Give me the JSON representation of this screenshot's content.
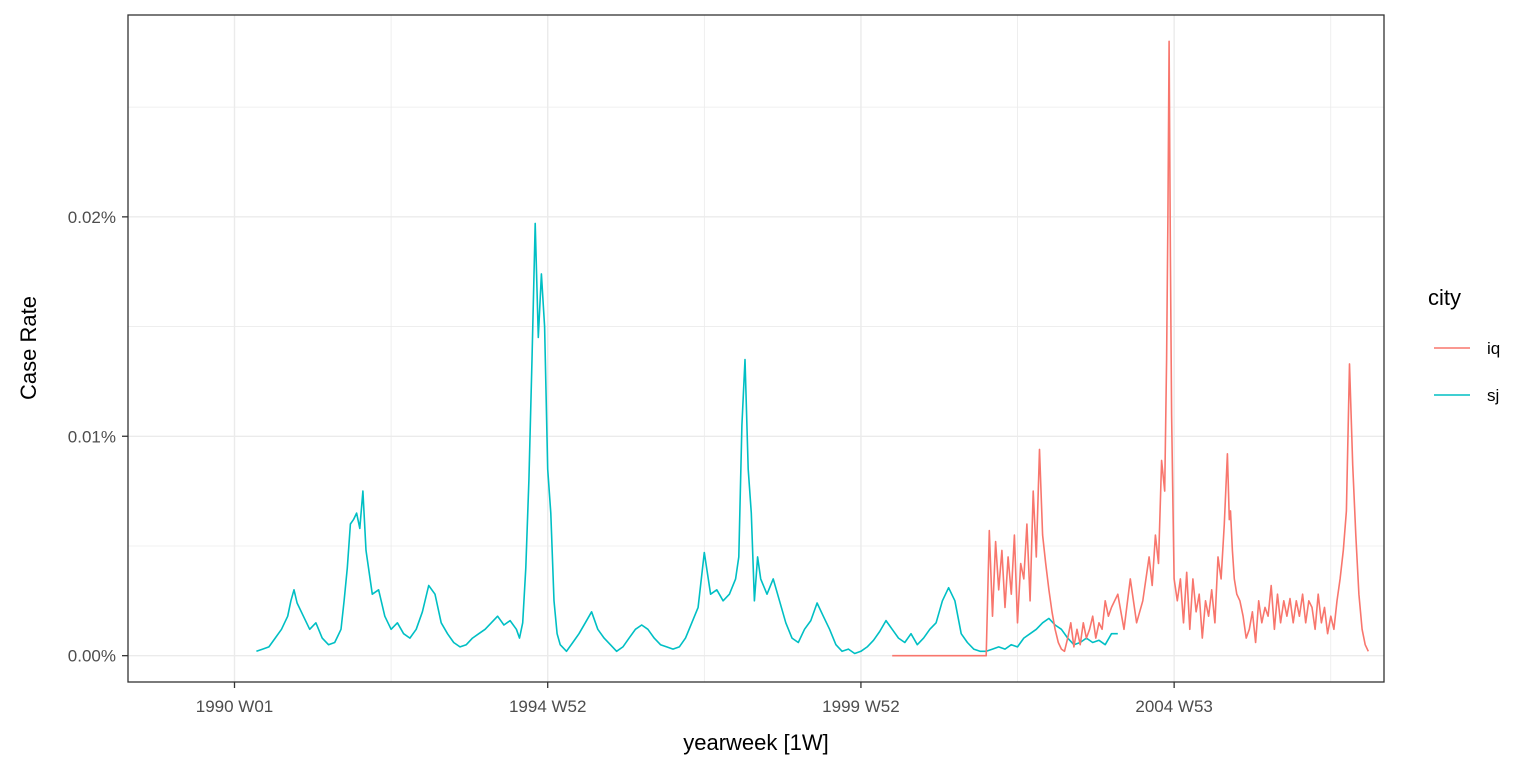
{
  "chart_data": {
    "type": "line",
    "title": "",
    "xlabel": "yearweek [1W]",
    "ylabel": "Case Rate",
    "x_unit": "year (decimal)",
    "y_unit": "percent",
    "xlim": [
      1988.3,
      2008.35
    ],
    "ylim": [
      -0.0012,
      0.0292
    ],
    "x_ticks": [
      {
        "value": 1990.0,
        "label": "1990 W01"
      },
      {
        "value": 1995.0,
        "label": "1994 W52"
      },
      {
        "value": 2000.0,
        "label": "1999 W52"
      },
      {
        "value": 2005.0,
        "label": "2004 W53"
      }
    ],
    "y_ticks": [
      {
        "value": 0.0,
        "label": "0.00%"
      },
      {
        "value": 0.01,
        "label": "0.01%"
      },
      {
        "value": 0.02,
        "label": "0.02%"
      }
    ],
    "grid": true,
    "legend_position": "right",
    "legend_title": "city",
    "series": [
      {
        "name": "iq",
        "color": "#F8766D",
        "x": [
          2000.5,
          2001.0,
          2001.5,
          2001.8,
          2002.0,
          2002.05,
          2002.1,
          2002.15,
          2002.2,
          2002.25,
          2002.3,
          2002.35,
          2002.4,
          2002.45,
          2002.5,
          2002.55,
          2002.6,
          2002.65,
          2002.7,
          2002.75,
          2002.8,
          2002.85,
          2002.9,
          2002.95,
          2003.0,
          2003.05,
          2003.1,
          2003.15,
          2003.2,
          2003.25,
          2003.3,
          2003.35,
          2003.4,
          2003.45,
          2003.5,
          2003.55,
          2003.6,
          2003.65,
          2003.7,
          2003.75,
          2003.8,
          2003.85,
          2003.9,
          2003.95,
          2004.0,
          2004.1,
          2004.2,
          2004.3,
          2004.4,
          2004.5,
          2004.6,
          2004.65,
          2004.7,
          2004.75,
          2004.8,
          2004.85,
          2004.88,
          2004.9,
          2004.92,
          2004.94,
          2004.96,
          2004.98,
          2005.0,
          2005.05,
          2005.1,
          2005.15,
          2005.2,
          2005.25,
          2005.3,
          2005.35,
          2005.4,
          2005.45,
          2005.5,
          2005.55,
          2005.6,
          2005.65,
          2005.7,
          2005.75,
          2005.8,
          2005.85,
          2005.88,
          2005.9,
          2005.93,
          2005.96,
          2006.0,
          2006.05,
          2006.1,
          2006.15,
          2006.2,
          2006.25,
          2006.3,
          2006.35,
          2006.4,
          2006.45,
          2006.5,
          2006.55,
          2006.6,
          2006.65,
          2006.7,
          2006.75,
          2006.8,
          2006.85,
          2006.9,
          2006.95,
          2007.0,
          2007.05,
          2007.1,
          2007.15,
          2007.2,
          2007.25,
          2007.3,
          2007.35,
          2007.4,
          2007.45,
          2007.5,
          2007.55,
          2007.6,
          2007.65,
          2007.7,
          2007.75,
          2007.8,
          2007.85,
          2007.9,
          2007.95,
          2008.0,
          2008.05,
          2008.1
        ],
        "y": [
          0.0,
          0.0,
          0.0,
          0.0,
          0.0,
          0.0057,
          0.0018,
          0.0052,
          0.003,
          0.0048,
          0.0022,
          0.0045,
          0.0028,
          0.0055,
          0.0015,
          0.0042,
          0.0035,
          0.006,
          0.0025,
          0.0075,
          0.0045,
          0.0094,
          0.0055,
          0.0042,
          0.003,
          0.002,
          0.0012,
          0.0006,
          0.0003,
          0.0002,
          0.0008,
          0.0015,
          0.0004,
          0.0012,
          0.0005,
          0.0015,
          0.0008,
          0.0012,
          0.0018,
          0.0008,
          0.0015,
          0.0012,
          0.0025,
          0.0018,
          0.0022,
          0.0028,
          0.0012,
          0.0035,
          0.0015,
          0.0025,
          0.0045,
          0.0032,
          0.0055,
          0.0042,
          0.0089,
          0.0075,
          0.0135,
          0.0199,
          0.028,
          0.0182,
          0.011,
          0.007,
          0.0035,
          0.0025,
          0.0035,
          0.0015,
          0.0038,
          0.0012,
          0.0035,
          0.002,
          0.0028,
          0.0008,
          0.0025,
          0.0018,
          0.003,
          0.0015,
          0.0045,
          0.0035,
          0.006,
          0.0092,
          0.0062,
          0.0066,
          0.0048,
          0.0035,
          0.0028,
          0.0025,
          0.0018,
          0.0008,
          0.0012,
          0.002,
          0.0006,
          0.0025,
          0.0015,
          0.0022,
          0.0018,
          0.0032,
          0.0012,
          0.0028,
          0.0015,
          0.0025,
          0.0018,
          0.0026,
          0.0015,
          0.0025,
          0.0018,
          0.0028,
          0.0015,
          0.0025,
          0.0022,
          0.0012,
          0.0028,
          0.0015,
          0.0022,
          0.001,
          0.0018,
          0.0012,
          0.0025,
          0.0035,
          0.0048,
          0.0066,
          0.0133,
          0.0087,
          0.0055,
          0.0028,
          0.0012,
          0.0005,
          0.0002
        ]
      },
      {
        "name": "sj",
        "color": "#00BFC4",
        "x": [
          1990.35,
          1990.45,
          1990.55,
          1990.65,
          1990.75,
          1990.85,
          1990.9,
          1990.95,
          1991.0,
          1991.1,
          1991.2,
          1991.3,
          1991.4,
          1991.5,
          1991.6,
          1991.65,
          1991.7,
          1991.75,
          1991.8,
          1991.85,
          1991.9,
          1991.95,
          1992.0,
          1992.05,
          1992.1,
          1992.2,
          1992.3,
          1992.4,
          1992.5,
          1992.6,
          1992.7,
          1992.8,
          1992.9,
          1993.0,
          1993.1,
          1993.2,
          1993.3,
          1993.4,
          1993.5,
          1993.6,
          1993.7,
          1993.8,
          1993.9,
          1994.0,
          1994.1,
          1994.2,
          1994.3,
          1994.4,
          1994.5,
          1994.55,
          1994.6,
          1994.65,
          1994.7,
          1994.75,
          1994.8,
          1994.85,
          1994.9,
          1994.95,
          1995.0,
          1995.05,
          1995.1,
          1995.15,
          1995.2,
          1995.3,
          1995.4,
          1995.5,
          1995.6,
          1995.7,
          1995.8,
          1995.9,
          1996.0,
          1996.1,
          1996.2,
          1996.3,
          1996.4,
          1996.5,
          1996.6,
          1996.7,
          1996.8,
          1996.9,
          1997.0,
          1997.1,
          1997.2,
          1997.3,
          1997.4,
          1997.5,
          1997.6,
          1997.7,
          1997.8,
          1997.9,
          1998.0,
          1998.05,
          1998.1,
          1998.15,
          1998.2,
          1998.25,
          1998.3,
          1998.35,
          1998.4,
          1998.5,
          1998.6,
          1998.7,
          1998.8,
          1998.9,
          1999.0,
          1999.1,
          1999.2,
          1999.3,
          1999.4,
          1999.5,
          1999.6,
          1999.7,
          1999.8,
          1999.9,
          2000.0,
          2000.1,
          2000.2,
          2000.3,
          2000.4,
          2000.5,
          2000.6,
          2000.7,
          2000.8,
          2000.9,
          2001.0,
          2001.1,
          2001.2,
          2001.3,
          2001.4,
          2001.5,
          2001.6,
          2001.7,
          2001.8,
          2001.9,
          2002.0,
          2002.1,
          2002.2,
          2002.3,
          2002.4,
          2002.5,
          2002.6,
          2002.7,
          2002.8,
          2002.9,
          2003.0,
          2003.1,
          2003.2,
          2003.3,
          2003.4,
          2003.5,
          2003.6,
          2003.7,
          2003.8,
          2003.9,
          2004.0,
          2004.1
        ],
        "y": [
          0.0002,
          0.0003,
          0.0004,
          0.0008,
          0.0012,
          0.0018,
          0.0025,
          0.003,
          0.0024,
          0.0018,
          0.0012,
          0.0015,
          0.0008,
          0.0005,
          0.0006,
          0.0009,
          0.0012,
          0.0025,
          0.004,
          0.006,
          0.0062,
          0.0065,
          0.0058,
          0.0075,
          0.0048,
          0.0028,
          0.003,
          0.0018,
          0.0012,
          0.0015,
          0.001,
          0.0008,
          0.0012,
          0.002,
          0.0032,
          0.0028,
          0.0015,
          0.001,
          0.0006,
          0.0004,
          0.0005,
          0.0008,
          0.001,
          0.0012,
          0.0015,
          0.0018,
          0.0014,
          0.0016,
          0.0012,
          0.0008,
          0.0015,
          0.004,
          0.008,
          0.0135,
          0.0197,
          0.0145,
          0.0174,
          0.015,
          0.0085,
          0.0065,
          0.0025,
          0.001,
          0.0005,
          0.0002,
          0.0006,
          0.001,
          0.0015,
          0.002,
          0.0012,
          0.0008,
          0.0005,
          0.0002,
          0.0004,
          0.0008,
          0.0012,
          0.0014,
          0.0012,
          0.0008,
          0.0005,
          0.0004,
          0.0003,
          0.0004,
          0.0008,
          0.0015,
          0.0022,
          0.0047,
          0.0028,
          0.003,
          0.0025,
          0.0028,
          0.0035,
          0.0045,
          0.0105,
          0.0135,
          0.0085,
          0.0065,
          0.0025,
          0.0045,
          0.0035,
          0.0028,
          0.0035,
          0.0025,
          0.0015,
          0.0008,
          0.0006,
          0.0012,
          0.0016,
          0.0024,
          0.0018,
          0.0012,
          0.0005,
          0.0002,
          0.0003,
          0.0001,
          0.0002,
          0.0004,
          0.0007,
          0.0011,
          0.0016,
          0.0012,
          0.0008,
          0.0006,
          0.001,
          0.0005,
          0.0008,
          0.0012,
          0.0015,
          0.0025,
          0.0031,
          0.0025,
          0.001,
          0.0006,
          0.0003,
          0.0002,
          0.0002,
          0.0003,
          0.0004,
          0.0003,
          0.0005,
          0.0004,
          0.0008,
          0.001,
          0.0012,
          0.0015,
          0.0017,
          0.0014,
          0.0012,
          0.0008,
          0.0005,
          0.0006,
          0.0008,
          0.0006,
          0.0007,
          0.0005,
          0.001,
          0.001
        ]
      }
    ]
  }
}
